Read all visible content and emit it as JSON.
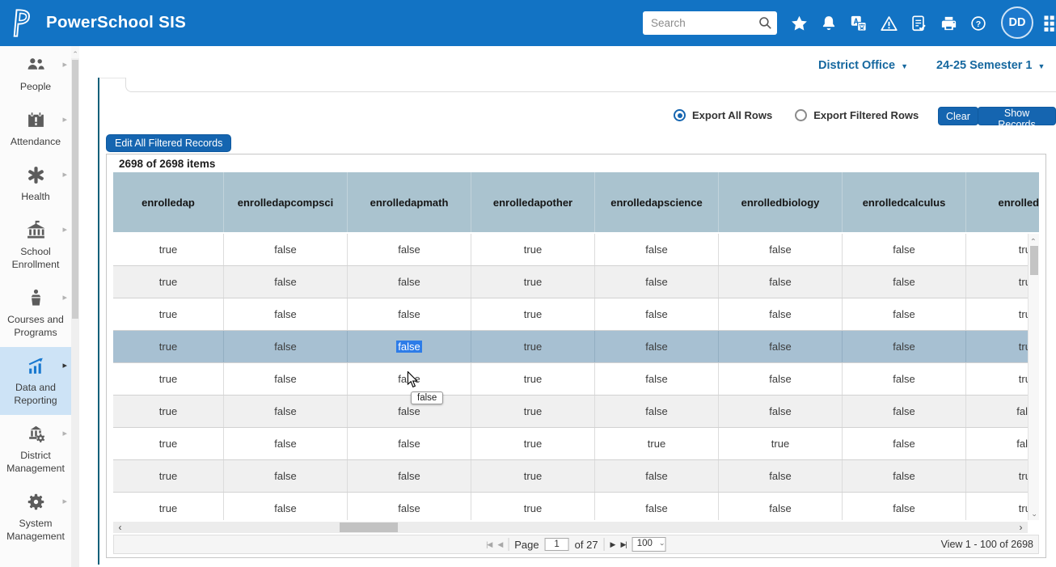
{
  "topbar": {
    "brand": "PowerSchool SIS",
    "search_placeholder": "Search",
    "avatar_initials": "DD",
    "icons": [
      "favorites-star-icon",
      "notifications-bell-icon",
      "translate-icon",
      "alerts-warning-icon",
      "reports-check-icon",
      "print-icon",
      "help-icon",
      "apps-grid-icon"
    ]
  },
  "context": {
    "school": "District Office",
    "term": "24-25 Semester 1"
  },
  "sidebar": {
    "items": [
      {
        "label": "People",
        "icon": "people-icon",
        "selected": false
      },
      {
        "label": "Attendance",
        "icon": "attendance-icon",
        "selected": false
      },
      {
        "label": "Health",
        "icon": "health-icon",
        "selected": false
      },
      {
        "label": "School Enrollment",
        "icon": "school-enrollment-icon",
        "selected": false
      },
      {
        "label": "Courses and Programs",
        "icon": "courses-icon",
        "selected": false
      },
      {
        "label": "Data and Reporting",
        "icon": "data-reporting-icon",
        "selected": true
      },
      {
        "label": "District Management",
        "icon": "district-management-icon",
        "selected": false
      },
      {
        "label": "System Management",
        "icon": "system-management-icon",
        "selected": false
      }
    ]
  },
  "toolbar": {
    "export_all_label": "Export All Rows",
    "export_filtered_label": "Export Filtered Rows",
    "export_selected": "all",
    "clear_label": "Clear",
    "show_records_label": "Show Records",
    "edit_all_label": "Edit All Filtered Records"
  },
  "grid": {
    "items_summary": "2698 of 2698 items",
    "columns": [
      "enrolledap",
      "enrolledapcompsci",
      "enrolledapmath",
      "enrolledapother",
      "enrolledapscience",
      "enrolledbiology",
      "enrolledcalculus",
      "enrolledche"
    ],
    "rows": [
      [
        "true",
        "false",
        "false",
        "true",
        "false",
        "false",
        "false",
        "true"
      ],
      [
        "true",
        "false",
        "false",
        "true",
        "false",
        "false",
        "false",
        "true"
      ],
      [
        "true",
        "false",
        "false",
        "true",
        "false",
        "false",
        "false",
        "true"
      ],
      [
        "true",
        "false",
        "false",
        "true",
        "false",
        "false",
        "false",
        "true"
      ],
      [
        "true",
        "false",
        "false",
        "true",
        "false",
        "false",
        "false",
        "true"
      ],
      [
        "true",
        "false",
        "false",
        "true",
        "false",
        "false",
        "false",
        "false"
      ],
      [
        "true",
        "false",
        "false",
        "true",
        "true",
        "true",
        "false",
        "false"
      ],
      [
        "true",
        "false",
        "false",
        "true",
        "false",
        "false",
        "false",
        "true"
      ],
      [
        "true",
        "false",
        "false",
        "true",
        "false",
        "false",
        "false",
        "true"
      ]
    ],
    "selected_row_index": 3,
    "selected_cell": {
      "row": 3,
      "col": 2
    },
    "hover_tooltip": "false",
    "pager": {
      "first_icon": "|◀",
      "prev_icon": "◀",
      "next_icon": "▶",
      "last_icon": "▶|",
      "page_label": "Page",
      "page_value": "1",
      "of_label": "of 27",
      "page_size": "100",
      "view_summary": "View 1 - 100 of 2698"
    }
  },
  "colors": {
    "topbar": "#1273c4",
    "btn": "#1565b0",
    "header_bg": "#aac3cf",
    "selected_row": "#a7c0d2",
    "selection": "#2d7ce8",
    "link": "#16689f",
    "sb_sel": "#cde3f6",
    "accent_line": "#14607a"
  }
}
